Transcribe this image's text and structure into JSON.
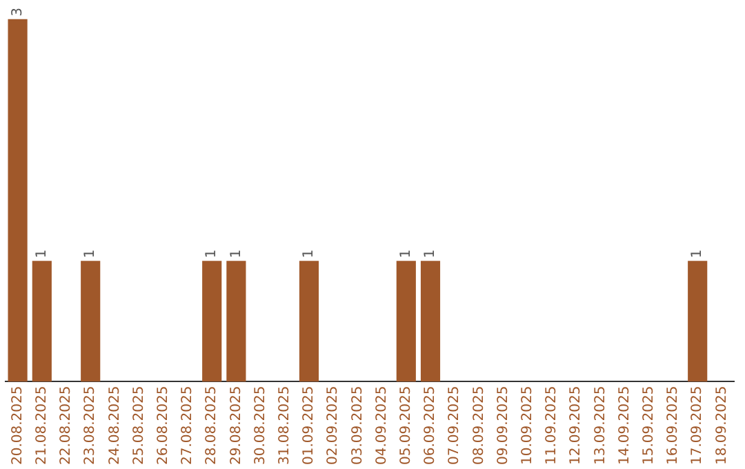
{
  "chart_data": {
    "type": "bar",
    "categories": [
      "20.08.2025",
      "21.08.2025",
      "22.08.2025",
      "23.08.2025",
      "24.08.2025",
      "25.08.2025",
      "26.08.2025",
      "27.08.2025",
      "28.08.2025",
      "29.08.2025",
      "30.08.2025",
      "31.08.2025",
      "01.09.2025",
      "02.09.2025",
      "03.09.2025",
      "04.09.2025",
      "05.09.2025",
      "06.09.2025",
      "07.09.2025",
      "08.09.2025",
      "09.09.2025",
      "10.09.2025",
      "11.09.2025",
      "12.09.2025",
      "13.09.2025",
      "14.09.2025",
      "15.09.2025",
      "16.09.2025",
      "17.09.2025",
      "18.09.2025"
    ],
    "values": [
      3,
      1,
      0,
      1,
      0,
      0,
      0,
      0,
      1,
      1,
      0,
      0,
      1,
      0,
      0,
      0,
      1,
      1,
      0,
      0,
      0,
      0,
      0,
      0,
      0,
      0,
      0,
      0,
      1,
      0
    ],
    "value_labels": [
      "3",
      "1",
      null,
      "1",
      null,
      null,
      null,
      null,
      "1",
      "1",
      null,
      null,
      "1",
      null,
      null,
      null,
      "1",
      "1",
      null,
      null,
      null,
      null,
      null,
      null,
      null,
      null,
      null,
      null,
      "1",
      null
    ],
    "color": "#a0582a",
    "legend": false,
    "grid": false
  }
}
